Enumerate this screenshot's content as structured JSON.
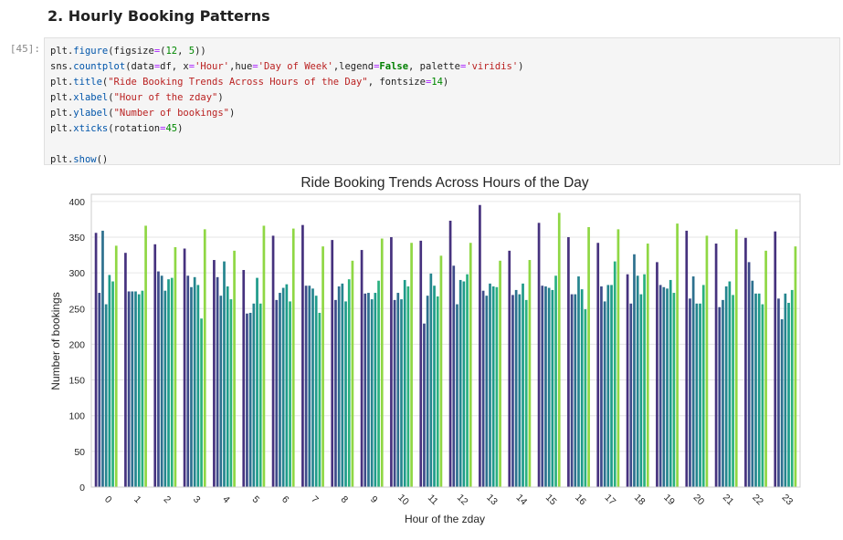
{
  "notebook": {
    "heading": "2. Hourly Booking Patterns",
    "prompt": "[45]:",
    "code_lines": [
      [
        [
          "plt",
          "p"
        ],
        [
          ".",
          "p"
        ],
        [
          "figure",
          "fn"
        ],
        [
          "(figsize",
          "p"
        ],
        [
          "=",
          "op"
        ],
        [
          "(",
          "p"
        ],
        [
          "12",
          "num"
        ],
        [
          ", ",
          "p"
        ],
        [
          "5",
          "num"
        ],
        [
          "))",
          "p"
        ]
      ],
      [
        [
          "sns",
          "p"
        ],
        [
          ".",
          "p"
        ],
        [
          "countplot",
          "fn"
        ],
        [
          "(data",
          "p"
        ],
        [
          "=",
          "op"
        ],
        [
          "df, x",
          "p"
        ],
        [
          "=",
          "op"
        ],
        [
          "'Hour'",
          "str"
        ],
        [
          ",hue",
          "p"
        ],
        [
          "=",
          "op"
        ],
        [
          "'Day of Week'",
          "str"
        ],
        [
          ",legend",
          "p"
        ],
        [
          "=",
          "op"
        ],
        [
          "False",
          "kw"
        ],
        [
          ", palette",
          "p"
        ],
        [
          "=",
          "op"
        ],
        [
          "'viridis'",
          "str"
        ],
        [
          ")",
          "p"
        ]
      ],
      [
        [
          "plt",
          "p"
        ],
        [
          ".",
          "p"
        ],
        [
          "title",
          "fn"
        ],
        [
          "(",
          "p"
        ],
        [
          "\"Ride Booking Trends Across Hours of the Day\"",
          "str"
        ],
        [
          ", fontsize",
          "p"
        ],
        [
          "=",
          "op"
        ],
        [
          "14",
          "num"
        ],
        [
          ")",
          "p"
        ]
      ],
      [
        [
          "plt",
          "p"
        ],
        [
          ".",
          "p"
        ],
        [
          "xlabel",
          "fn"
        ],
        [
          "(",
          "p"
        ],
        [
          "\"Hour of the zday\"",
          "str"
        ],
        [
          ")",
          "p"
        ]
      ],
      [
        [
          "plt",
          "p"
        ],
        [
          ".",
          "p"
        ],
        [
          "ylabel",
          "fn"
        ],
        [
          "(",
          "p"
        ],
        [
          "\"Number of bookings\"",
          "str"
        ],
        [
          ")",
          "p"
        ]
      ],
      [
        [
          "plt",
          "p"
        ],
        [
          ".",
          "p"
        ],
        [
          "xticks",
          "fn"
        ],
        [
          "(rotation",
          "p"
        ],
        [
          "=",
          "op"
        ],
        [
          "45",
          "num"
        ],
        [
          ")",
          "p"
        ]
      ],
      [],
      [
        [
          "plt",
          "p"
        ],
        [
          ".",
          "p"
        ],
        [
          "show",
          "fn"
        ],
        [
          "()",
          "p"
        ]
      ]
    ]
  },
  "chart_data": {
    "type": "bar",
    "title": "Ride Booking Trends Across Hours of the Day",
    "xlabel": "Hour of the zday",
    "ylabel": "Number of bookings",
    "ylim": [
      0,
      410
    ],
    "yticks": [
      0,
      50,
      100,
      150,
      200,
      250,
      300,
      350,
      400
    ],
    "grid": true,
    "legend": false,
    "categories": [
      "0",
      "1",
      "2",
      "3",
      "4",
      "5",
      "6",
      "7",
      "8",
      "9",
      "10",
      "11",
      "12",
      "13",
      "14",
      "15",
      "16",
      "17",
      "18",
      "19",
      "20",
      "21",
      "22",
      "23"
    ],
    "series": [
      {
        "color": "#46327e",
        "values": [
          356,
          328,
          340,
          334,
          318,
          304,
          352,
          367,
          346,
          332,
          350,
          345,
          373,
          395,
          331,
          370,
          350,
          342,
          298,
          315,
          359,
          341,
          349,
          358
        ]
      },
      {
        "color": "#3e4a89",
        "values": [
          272,
          274,
          302,
          296,
          294,
          243,
          262,
          282,
          262,
          271,
          262,
          229,
          310,
          275,
          269,
          282,
          270,
          281,
          257,
          283,
          264,
          252,
          315,
          264
        ]
      },
      {
        "color": "#2d708e",
        "values": [
          359,
          274,
          296,
          280,
          268,
          244,
          272,
          282,
          281,
          272,
          272,
          268,
          256,
          268,
          276,
          281,
          270,
          260,
          326,
          280,
          295,
          262,
          289,
          235
        ]
      },
      {
        "color": "#25858e",
        "values": [
          256,
          274,
          275,
          294,
          316,
          257,
          279,
          278,
          285,
          263,
          263,
          299,
          290,
          285,
          270,
          279,
          295,
          283,
          296,
          278,
          257,
          281,
          271,
          271
        ]
      },
      {
        "color": "#1e9b8a",
        "values": [
          297,
          270,
          291,
          283,
          281,
          293,
          284,
          268,
          260,
          272,
          290,
          282,
          288,
          281,
          285,
          276,
          277,
          283,
          270,
          290,
          257,
          288,
          271,
          258
        ]
      },
      {
        "color": "#2ab07f",
        "values": [
          288,
          275,
          293,
          236,
          263,
          257,
          260,
          244,
          291,
          289,
          281,
          267,
          298,
          280,
          262,
          296,
          249,
          316,
          298,
          272,
          283,
          269,
          256,
          276
        ]
      },
      {
        "color": "#8fd744",
        "values": [
          338,
          366,
          336,
          361,
          331,
          366,
          362,
          337,
          317,
          348,
          342,
          324,
          342,
          317,
          318,
          384,
          364,
          361,
          341,
          369,
          352,
          361,
          331,
          337
        ]
      }
    ]
  }
}
